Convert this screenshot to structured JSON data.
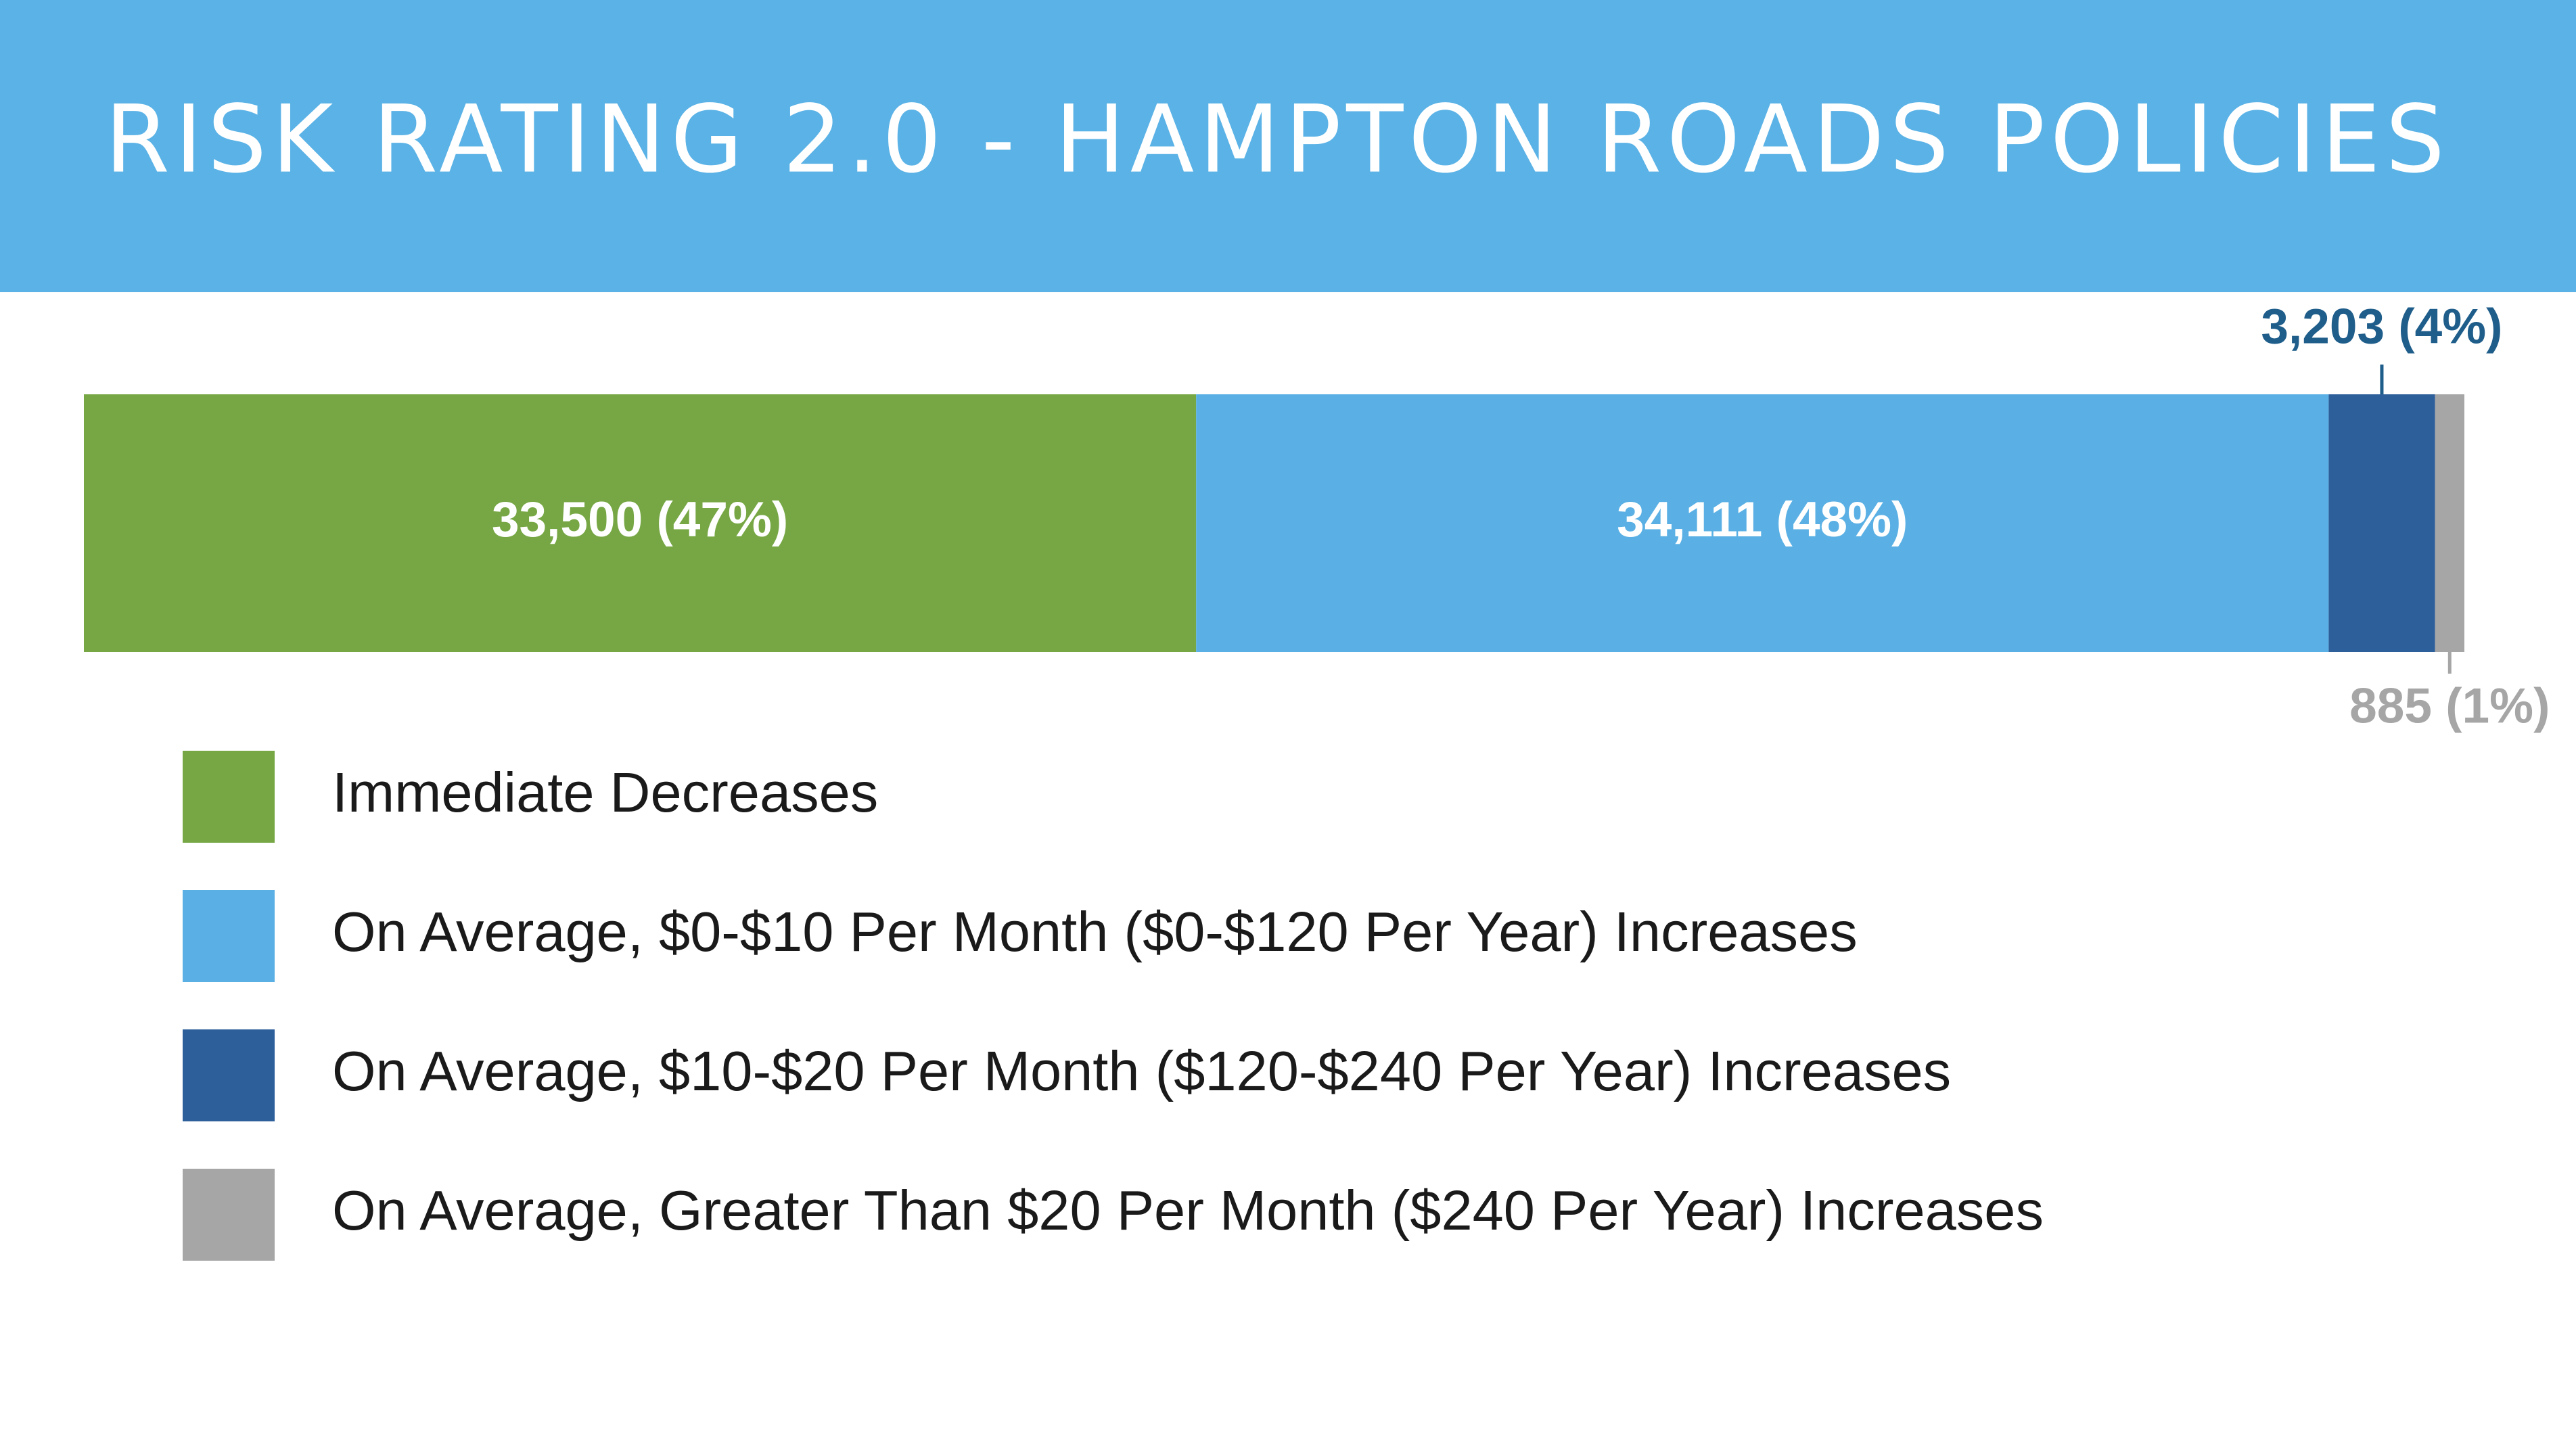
{
  "chart_data": {
    "type": "bar",
    "stacked": true,
    "orientation": "horizontal",
    "title": "RISK RATING 2.0 - HAMPTON ROADS POLICIES",
    "series": [
      {
        "name": "Immediate Decreases",
        "color": "#76a744",
        "values": [
          33500
        ],
        "value_labels": [
          "33,500 (47%)"
        ]
      },
      {
        "name": "On Average, $0-$10 Per Month ($0-$120 Per Year) Increases",
        "color": "#5ab0e4",
        "values": [
          34111
        ],
        "value_labels": [
          "34,111 (48%)"
        ]
      },
      {
        "name": "On Average, $10-$20 Per Month ($120-$240 Per Year) Increases",
        "color": "#2d5f9b",
        "values": [
          3203
        ],
        "value_labels": [
          "3,203 (4%)"
        ]
      },
      {
        "name": "On Average, Greater Than $20 Per Month ($240 Per Year) Increases",
        "color": "#a6a6a6",
        "values": [
          885
        ],
        "value_labels": [
          "885 (1%)"
        ]
      }
    ]
  }
}
